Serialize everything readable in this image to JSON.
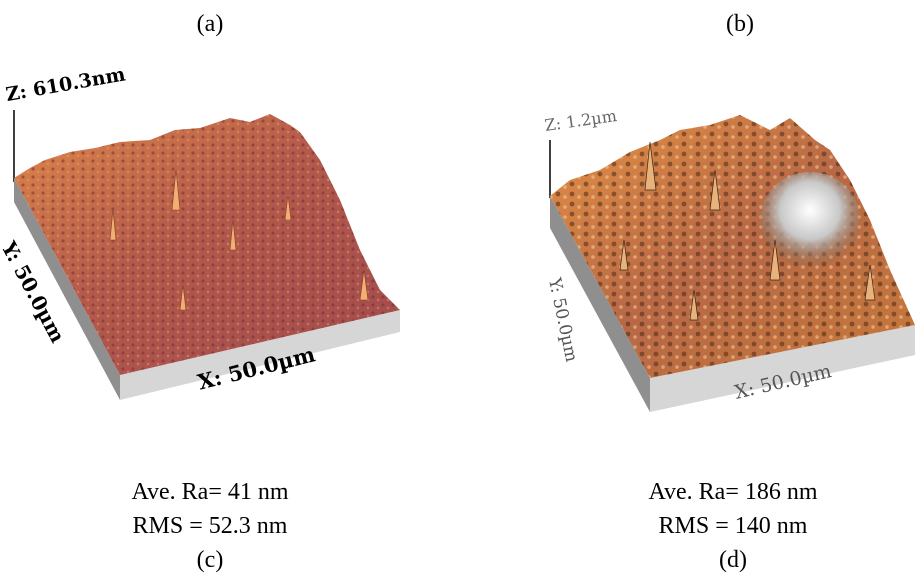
{
  "figure": {
    "panels": [
      {
        "top_label": "(a)",
        "bottom_label": "(c)",
        "z_label": "Z: 610.3nm",
        "y_label": "Y: 50.0µm",
        "x_label": "X: 50.0µm",
        "ra": "Ave. Ra= 41 nm",
        "rms": "RMS = 52.3 nm",
        "surface_color": "#b8604a",
        "side_color": "#d9d9d9"
      },
      {
        "top_label": "(b)",
        "bottom_label": "(d)",
        "z_label": "Z: 1.2µm",
        "y_label": "Y: 50.0µm",
        "x_label": "X: 50.0µm",
        "ra": "Ave. Ra= 186 nm",
        "rms": "RMS = 140 nm",
        "surface_color": "#c8703c",
        "side_color": "#d9d9d9"
      }
    ]
  }
}
